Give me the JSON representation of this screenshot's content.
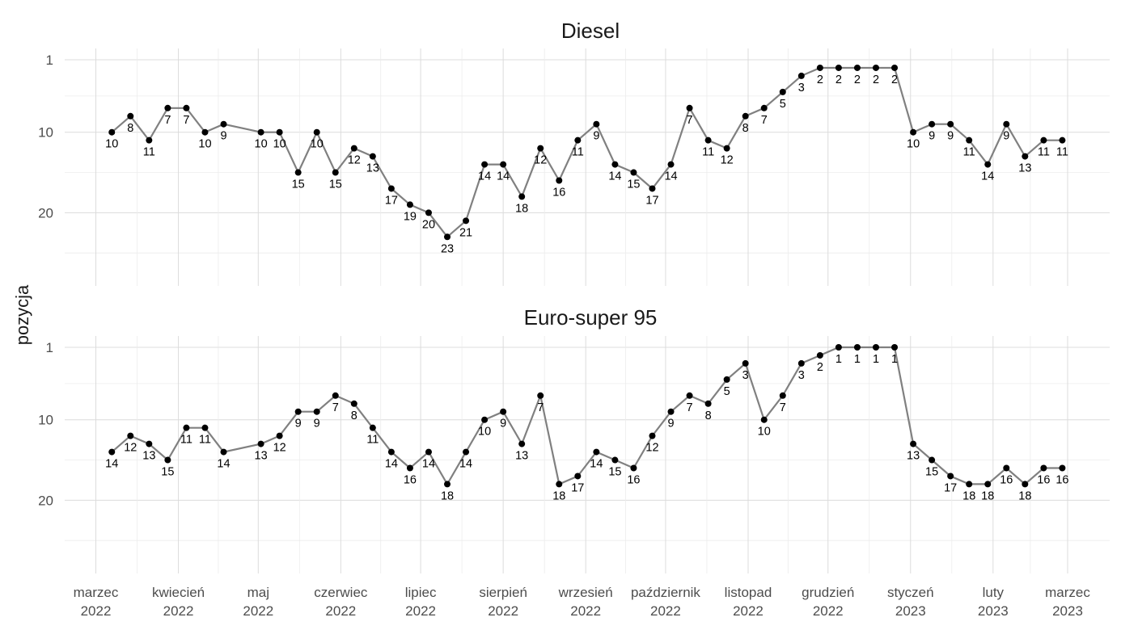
{
  "chart_data": {
    "type": "line",
    "ylabel": "pozycja",
    "y_reversed": true,
    "y_ticks": [
      1,
      10,
      20
    ],
    "x_ticks": [
      {
        "line1": "marzec",
        "line2": "2022",
        "date": "2022-03-01"
      },
      {
        "line1": "kwiecień",
        "line2": "2022",
        "date": "2022-04-01"
      },
      {
        "line1": "maj",
        "line2": "2022",
        "date": "2022-05-01"
      },
      {
        "line1": "czerwiec",
        "line2": "2022",
        "date": "2022-06-01"
      },
      {
        "line1": "lipiec",
        "line2": "2022",
        "date": "2022-07-01"
      },
      {
        "line1": "sierpień",
        "line2": "2022",
        "date": "2022-08-01"
      },
      {
        "line1": "wrzesień",
        "line2": "2022",
        "date": "2022-09-01"
      },
      {
        "line1": "październik",
        "line2": "2022",
        "date": "2022-10-01"
      },
      {
        "line1": "listopad",
        "line2": "2022",
        "date": "2022-11-01"
      },
      {
        "line1": "grudzień",
        "line2": "2022",
        "date": "2022-12-01"
      },
      {
        "line1": "styczeń",
        "line2": "2023",
        "date": "2023-01-01"
      },
      {
        "line1": "luty",
        "line2": "2023",
        "date": "2023-02-01"
      },
      {
        "line1": "marzec",
        "line2": "2023",
        "date": "2023-03-01"
      }
    ],
    "x": [
      "2022-03-07",
      "2022-03-14",
      "2022-03-21",
      "2022-03-28",
      "2022-04-04",
      "2022-04-11",
      "2022-04-18",
      "2022-05-02",
      "2022-05-09",
      "2022-05-16",
      "2022-05-23",
      "2022-05-30",
      "2022-06-06",
      "2022-06-13",
      "2022-06-20",
      "2022-06-27",
      "2022-07-04",
      "2022-07-11",
      "2022-07-18",
      "2022-07-25",
      "2022-08-01",
      "2022-08-08",
      "2022-08-15",
      "2022-08-22",
      "2022-08-29",
      "2022-09-05",
      "2022-09-12",
      "2022-09-19",
      "2022-09-26",
      "2022-10-03",
      "2022-10-10",
      "2022-10-17",
      "2022-10-24",
      "2022-10-31",
      "2022-11-07",
      "2022-11-14",
      "2022-11-21",
      "2022-11-28",
      "2022-12-05",
      "2022-12-12",
      "2022-12-19",
      "2022-12-26",
      "2023-01-02",
      "2023-01-09",
      "2023-01-16",
      "2023-01-23",
      "2023-01-30",
      "2023-02-06",
      "2023-02-13",
      "2023-02-20",
      "2023-02-27"
    ],
    "series": [
      {
        "name": "Diesel",
        "values": [
          10,
          8,
          11,
          7,
          7,
          10,
          9,
          10,
          10,
          15,
          10,
          15,
          12,
          13,
          17,
          19,
          20,
          23,
          21,
          14,
          14,
          18,
          12,
          16,
          11,
          9,
          14,
          15,
          17,
          14,
          7,
          11,
          12,
          8,
          7,
          5,
          3,
          2,
          2,
          2,
          2,
          2,
          10,
          9,
          9,
          11,
          14,
          9,
          13,
          11,
          11
        ]
      },
      {
        "name": "Euro-super 95",
        "values": [
          14,
          12,
          13,
          15,
          11,
          11,
          14,
          13,
          12,
          9,
          9,
          7,
          8,
          11,
          14,
          16,
          14,
          18,
          14,
          10,
          9,
          13,
          7,
          18,
          17,
          14,
          15,
          16,
          12,
          9,
          7,
          8,
          5,
          3,
          10,
          7,
          3,
          2,
          1,
          1,
          1,
          1,
          13,
          15,
          17,
          18,
          18,
          16,
          18,
          16,
          16
        ]
      }
    ]
  }
}
